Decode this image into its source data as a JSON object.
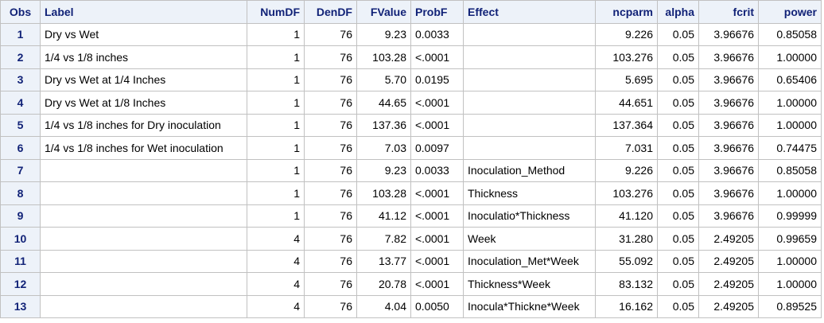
{
  "headers": [
    "Obs",
    "Label",
    "NumDF",
    "DenDF",
    "FValue",
    "ProbF",
    "Effect",
    "ncparm",
    "alpha",
    "fcrit",
    "power"
  ],
  "rows": [
    [
      "1",
      "Dry vs Wet",
      "1",
      "76",
      "9.23",
      "0.0033",
      "",
      "9.226",
      "0.05",
      "3.96676",
      "0.85058"
    ],
    [
      "2",
      "1/4 vs 1/8 inches",
      "1",
      "76",
      "103.28",
      "<.0001",
      "",
      "103.276",
      "0.05",
      "3.96676",
      "1.00000"
    ],
    [
      "3",
      "Dry vs Wet at 1/4 Inches",
      "1",
      "76",
      "5.70",
      "0.0195",
      "",
      "5.695",
      "0.05",
      "3.96676",
      "0.65406"
    ],
    [
      "4",
      "Dry vs Wet at 1/8 Inches",
      "1",
      "76",
      "44.65",
      "<.0001",
      "",
      "44.651",
      "0.05",
      "3.96676",
      "1.00000"
    ],
    [
      "5",
      "1/4 vs 1/8 inches for Dry inoculation",
      "1",
      "76",
      "137.36",
      "<.0001",
      "",
      "137.364",
      "0.05",
      "3.96676",
      "1.00000"
    ],
    [
      "6",
      "1/4 vs 1/8 inches for Wet inoculation",
      "1",
      "76",
      "7.03",
      "0.0097",
      "",
      "7.031",
      "0.05",
      "3.96676",
      "0.74475"
    ],
    [
      "7",
      "",
      "1",
      "76",
      "9.23",
      "0.0033",
      "Inoculation_Method",
      "9.226",
      "0.05",
      "3.96676",
      "0.85058"
    ],
    [
      "8",
      "",
      "1",
      "76",
      "103.28",
      "<.0001",
      "Thickness",
      "103.276",
      "0.05",
      "3.96676",
      "1.00000"
    ],
    [
      "9",
      "",
      "1",
      "76",
      "41.12",
      "<.0001",
      "Inoculatio*Thickness",
      "41.120",
      "0.05",
      "3.96676",
      "0.99999"
    ],
    [
      "10",
      "",
      "4",
      "76",
      "7.82",
      "<.0001",
      "Week",
      "31.280",
      "0.05",
      "2.49205",
      "0.99659"
    ],
    [
      "11",
      "",
      "4",
      "76",
      "13.77",
      "<.0001",
      "Inoculation_Met*Week",
      "55.092",
      "0.05",
      "2.49205",
      "1.00000"
    ],
    [
      "12",
      "",
      "4",
      "76",
      "20.78",
      "<.0001",
      "Thickness*Week",
      "83.132",
      "0.05",
      "2.49205",
      "1.00000"
    ],
    [
      "13",
      "",
      "4",
      "76",
      "4.04",
      "0.0050",
      "Inocula*Thickne*Week",
      "16.162",
      "0.05",
      "2.49205",
      "0.89525"
    ]
  ]
}
